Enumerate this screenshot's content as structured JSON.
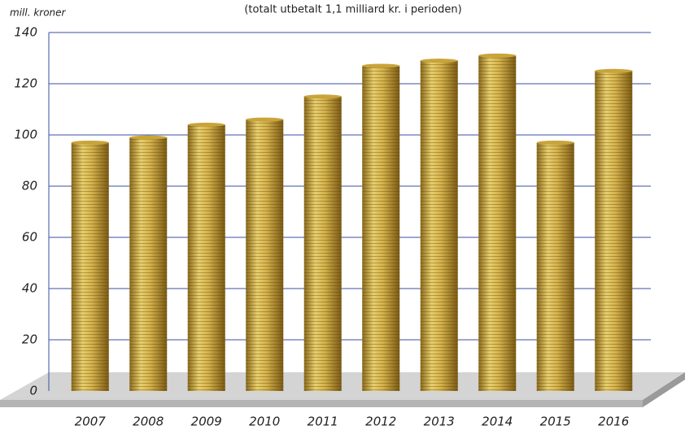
{
  "chart_data": {
    "type": "bar",
    "subtitle": "(totalt utbetalt 1,1 milliard kr. i perioden)",
    "y_label": "mill. kroner",
    "categories": [
      "2007",
      "2008",
      "2009",
      "2010",
      "2011",
      "2012",
      "2013",
      "2014",
      "2015",
      "2016"
    ],
    "values": [
      97,
      99,
      104,
      106,
      115,
      127,
      129,
      131,
      97,
      125
    ],
    "color": "#c9a43a",
    "ylim": [
      0,
      140
    ],
    "yticks": [
      0,
      20,
      40,
      60,
      80,
      100,
      120,
      140
    ],
    "grid": true
  }
}
